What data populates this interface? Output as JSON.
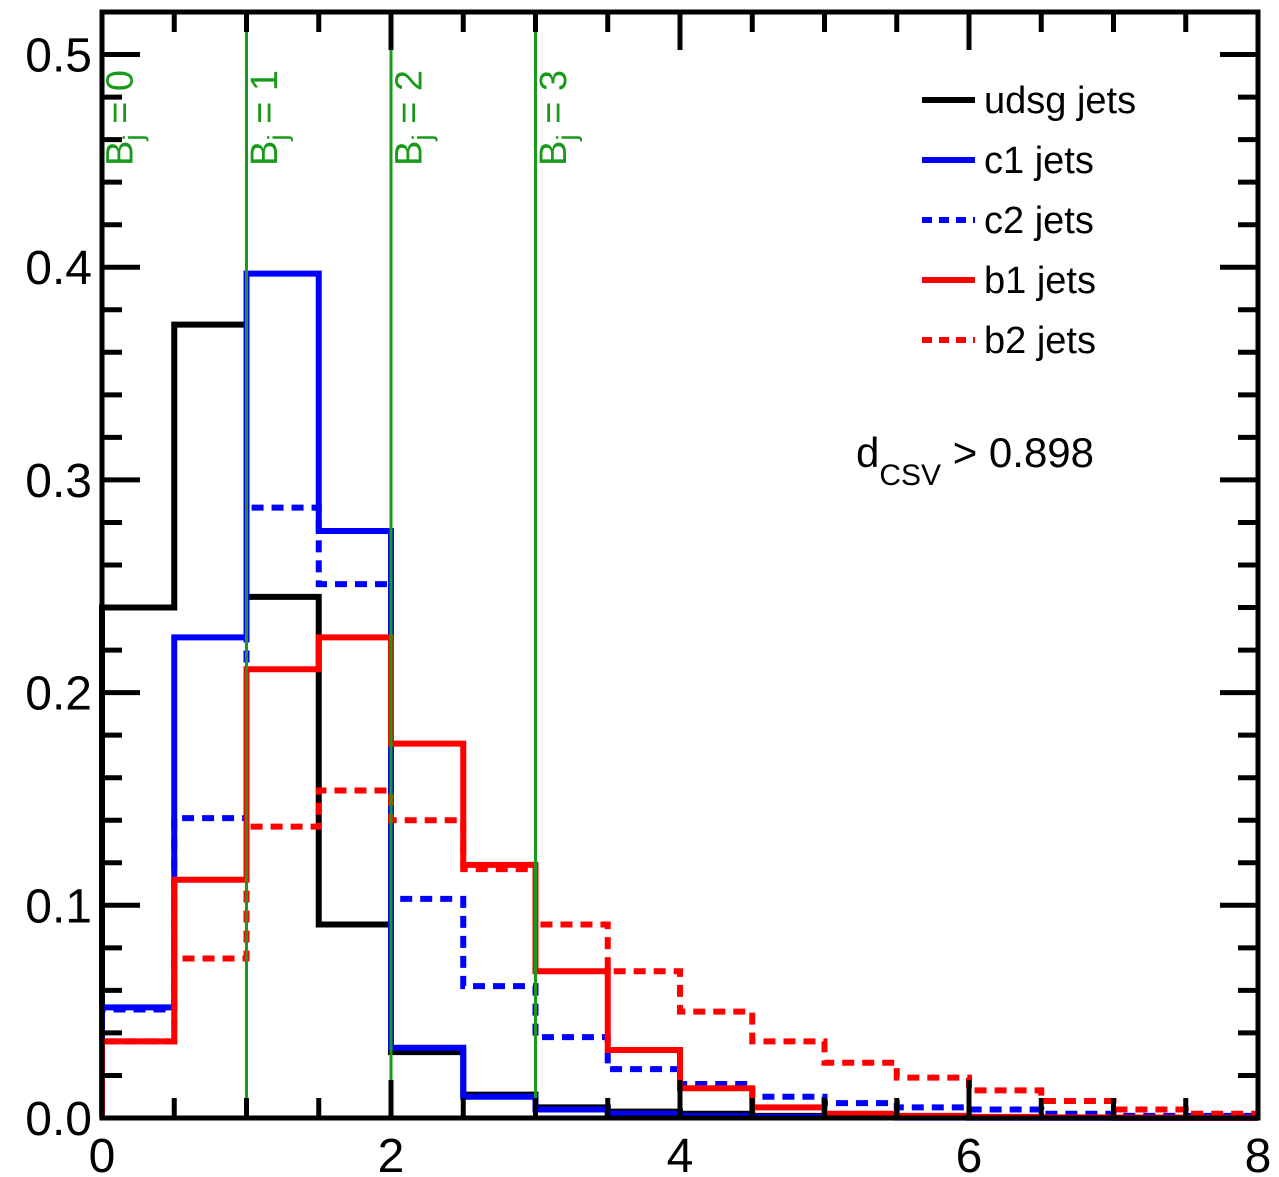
{
  "chart_data": {
    "type": "line",
    "title": "",
    "xlabel": "",
    "ylabel": "",
    "xlim": [
      0,
      8
    ],
    "ylim": [
      0,
      0.52
    ],
    "x_ticks": [
      "0",
      "2",
      "4",
      "6",
      "8"
    ],
    "y_ticks": [
      "0.0",
      "0.1",
      "0.2",
      "0.3",
      "0.4",
      "0.5"
    ],
    "bin_edges": [
      0,
      0.5,
      1,
      1.5,
      2,
      2.5,
      3,
      3.5,
      4,
      4.5,
      5,
      5.5,
      6,
      6.5,
      7,
      7.5,
      8
    ],
    "legend_position": "top-right",
    "grid": false,
    "series": [
      {
        "name": "udsg jets",
        "color": "#000000",
        "dashed": false,
        "values": [
          0.24,
          0.373,
          0.245,
          0.091,
          0.031,
          0.011,
          0.005,
          0.003,
          0.002,
          0.001,
          0.001,
          0.0005,
          0.0003,
          0.0002,
          0.0001,
          0.0001
        ]
      },
      {
        "name": "c1 jets",
        "color": "#0000ff",
        "dashed": false,
        "values": [
          0.052,
          0.226,
          0.397,
          0.276,
          0.033,
          0.01,
          0.004,
          0.002,
          0.001,
          0.0005,
          0.0003,
          0.0002,
          0.0001,
          0.0001,
          0.0001,
          0.0001
        ]
      },
      {
        "name": "c2 jets",
        "color": "#0000ff",
        "dashed": true,
        "values": [
          0.051,
          0.141,
          0.287,
          0.251,
          0.103,
          0.062,
          0.038,
          0.023,
          0.016,
          0.01,
          0.007,
          0.005,
          0.004,
          0.002,
          0.001,
          0.001
        ]
      },
      {
        "name": "b1 jets",
        "color": "#ff0000",
        "dashed": false,
        "values": [
          0.036,
          0.112,
          0.211,
          0.226,
          0.176,
          0.119,
          0.069,
          0.032,
          0.014,
          0.005,
          0.002,
          0.001,
          0.0005,
          0.0003,
          0.0002,
          0.0001
        ]
      },
      {
        "name": "b2 jets",
        "color": "#ff0000",
        "dashed": true,
        "values": [
          0.036,
          0.075,
          0.137,
          0.154,
          0.14,
          0.117,
          0.091,
          0.069,
          0.05,
          0.036,
          0.026,
          0.019,
          0.013,
          0.008,
          0.004,
          0.002
        ]
      }
    ],
    "vertical_lines": [
      {
        "x": 1,
        "color": "#1a9a1a"
      },
      {
        "x": 2,
        "color": "#1a9a1a"
      },
      {
        "x": 3,
        "color": "#1a9a1a"
      }
    ],
    "region_labels": [
      {
        "text": "B",
        "sub": "j",
        "rest": " = 0",
        "color": "#1a9a1a",
        "x": 0.5
      },
      {
        "text": "B",
        "sub": "j",
        "rest": " = 1",
        "color": "#1a9a1a",
        "x": 1.5
      },
      {
        "text": "B",
        "sub": "j",
        "rest": " = 2",
        "color": "#1a9a1a",
        "x": 2.5
      },
      {
        "text": "B",
        "sub": "j",
        "rest": " = 3",
        "color": "#1a9a1a",
        "x": 3.5
      }
    ],
    "annotation": {
      "main": "d",
      "sub": "CSV",
      "rest": " > 0.898"
    }
  }
}
